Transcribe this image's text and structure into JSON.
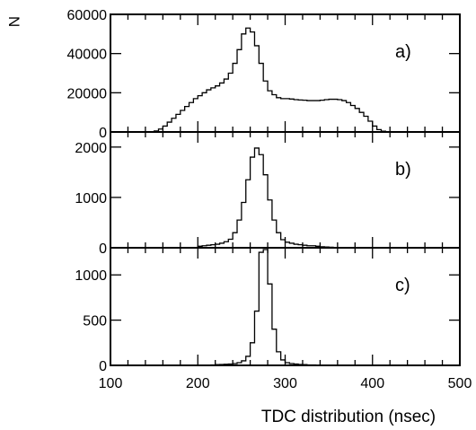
{
  "chart_data": [
    {
      "type": "histogram",
      "panel_label": "a)",
      "ylabel": "N",
      "xlabel": "",
      "xlim": [
        100,
        500
      ],
      "ylim": [
        0,
        60000
      ],
      "yticks": [
        "0",
        "20000",
        "40000",
        "60000"
      ],
      "x": [
        155,
        160,
        165,
        170,
        175,
        180,
        185,
        190,
        195,
        200,
        205,
        210,
        215,
        220,
        225,
        230,
        235,
        240,
        245,
        250,
        255,
        260,
        265,
        270,
        275,
        280,
        285,
        290,
        295,
        300,
        305,
        310,
        315,
        320,
        325,
        330,
        335,
        340,
        345,
        350,
        355,
        360,
        365,
        370,
        375,
        380,
        385,
        390,
        395,
        400,
        405,
        410,
        415,
        420
      ],
      "values": [
        500,
        1500,
        3000,
        5000,
        7000,
        9000,
        11000,
        13000,
        15000,
        17000,
        18500,
        20000,
        21500,
        22500,
        23500,
        25000,
        27000,
        30000,
        35000,
        42000,
        50000,
        53000,
        51000,
        44000,
        35000,
        26000,
        21000,
        19000,
        17500,
        17000,
        17000,
        16800,
        16500,
        16300,
        16200,
        16000,
        16000,
        16000,
        16200,
        16500,
        16700,
        16700,
        16500,
        16000,
        15000,
        13500,
        12000,
        10000,
        8000,
        5500,
        3000,
        1200,
        400,
        0
      ]
    },
    {
      "type": "histogram",
      "panel_label": "b)",
      "xlim": [
        100,
        500
      ],
      "ylim": [
        0,
        2300
      ],
      "yticks": [
        "0",
        "1000",
        "2000"
      ],
      "x": [
        205,
        210,
        215,
        220,
        225,
        230,
        235,
        240,
        245,
        250,
        255,
        260,
        265,
        270,
        275,
        280,
        285,
        290,
        295,
        300,
        305,
        310,
        315,
        320,
        325,
        330,
        335,
        340,
        345,
        350,
        355,
        360
      ],
      "values": [
        30,
        40,
        50,
        60,
        70,
        90,
        120,
        170,
        300,
        550,
        900,
        1350,
        1800,
        1980,
        1850,
        1450,
        950,
        550,
        300,
        160,
        110,
        90,
        70,
        60,
        50,
        40,
        40,
        30,
        20,
        15,
        10,
        5
      ]
    },
    {
      "type": "histogram",
      "panel_label": "c)",
      "xlim": [
        100,
        500
      ],
      "ylim": [
        0,
        1300
      ],
      "yticks": [
        "0",
        "500",
        "1000"
      ],
      "xticks": [
        "100",
        "200",
        "300",
        "400",
        "500"
      ],
      "xlabel": "TDC distribution (nsec)",
      "x": [
        220,
        225,
        230,
        235,
        240,
        245,
        250,
        255,
        260,
        265,
        270,
        275,
        280,
        285,
        290,
        295,
        300,
        305,
        310,
        315,
        320,
        325,
        330,
        335,
        340
      ],
      "values": [
        5,
        8,
        10,
        12,
        15,
        20,
        30,
        50,
        100,
        250,
        600,
        1250,
        1280,
        900,
        400,
        150,
        60,
        30,
        20,
        15,
        10,
        8,
        5,
        5,
        3
      ]
    }
  ]
}
